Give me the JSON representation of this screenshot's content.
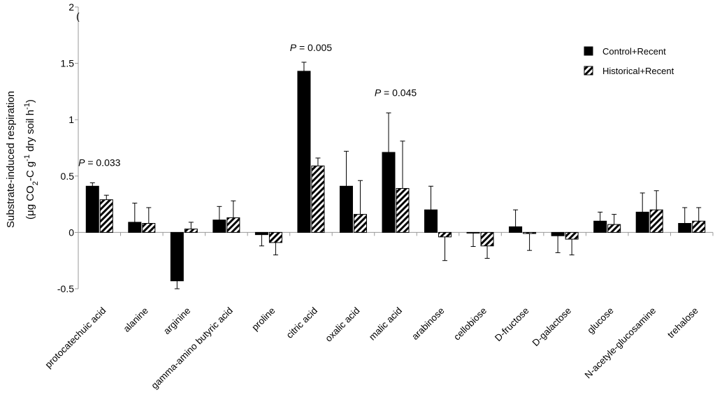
{
  "chart_data": {
    "type": "bar",
    "title": "",
    "ylabel": "Substrate-induced respiration",
    "ylabel_units": [
      "(μg CO",
      "2",
      "-C g",
      "-1",
      " dry soil h",
      "-1",
      ")"
    ],
    "ylim": [
      -0.5,
      2
    ],
    "y_ticks": [
      -0.5,
      0,
      0.5,
      1,
      1.5,
      2
    ],
    "y_tick_labels": [
      "-0.5",
      "0",
      "0.5",
      "1",
      "1.5",
      "2"
    ],
    "legend_position": "top-right",
    "corner_mark": "(",
    "categories": [
      "protocatechuic acid",
      "alanine",
      "arginine",
      "gamma-amino butyric acid",
      "proline",
      "citric acid",
      "oxalic acid",
      "malic acid",
      "arabinose",
      "cellobiose",
      "D-fructose",
      "D-galactose",
      "glucose",
      "N-acetyle-glucosamine",
      "trehalose"
    ],
    "series": [
      {
        "name": "Control+Recent",
        "fill": "#000000",
        "pattern": "solid",
        "values": [
          0.41,
          0.09,
          -0.43,
          0.11,
          -0.02,
          1.43,
          0.41,
          0.71,
          0.2,
          -0.005,
          0.05,
          -0.03,
          0.1,
          0.18,
          0.08
        ],
        "errors": [
          0.03,
          0.17,
          0.07,
          0.12,
          0.1,
          0.08,
          0.31,
          0.35,
          0.21,
          0.12,
          0.15,
          0.15,
          0.08,
          0.17,
          0.14
        ]
      },
      {
        "name": "Historical+Recent",
        "fill": "#000000",
        "pattern": "hatched",
        "values": [
          0.29,
          0.08,
          0.03,
          0.13,
          -0.09,
          0.59,
          0.16,
          0.39,
          -0.04,
          -0.12,
          -0.01,
          -0.06,
          0.07,
          0.2,
          0.1
        ],
        "errors": [
          0.04,
          0.14,
          0.06,
          0.15,
          0.11,
          0.07,
          0.3,
          0.42,
          0.21,
          0.11,
          0.15,
          0.14,
          0.09,
          0.17,
          0.12
        ]
      }
    ],
    "annotations": [
      {
        "category_index": 0,
        "y": 0.59,
        "italic": "P",
        "text": " = 0.033"
      },
      {
        "category_index": 5,
        "y": 1.61,
        "italic": "P",
        "text": " = 0.005"
      },
      {
        "category_index": 7,
        "y": 1.21,
        "italic": "P",
        "text": " = 0.045"
      }
    ]
  }
}
